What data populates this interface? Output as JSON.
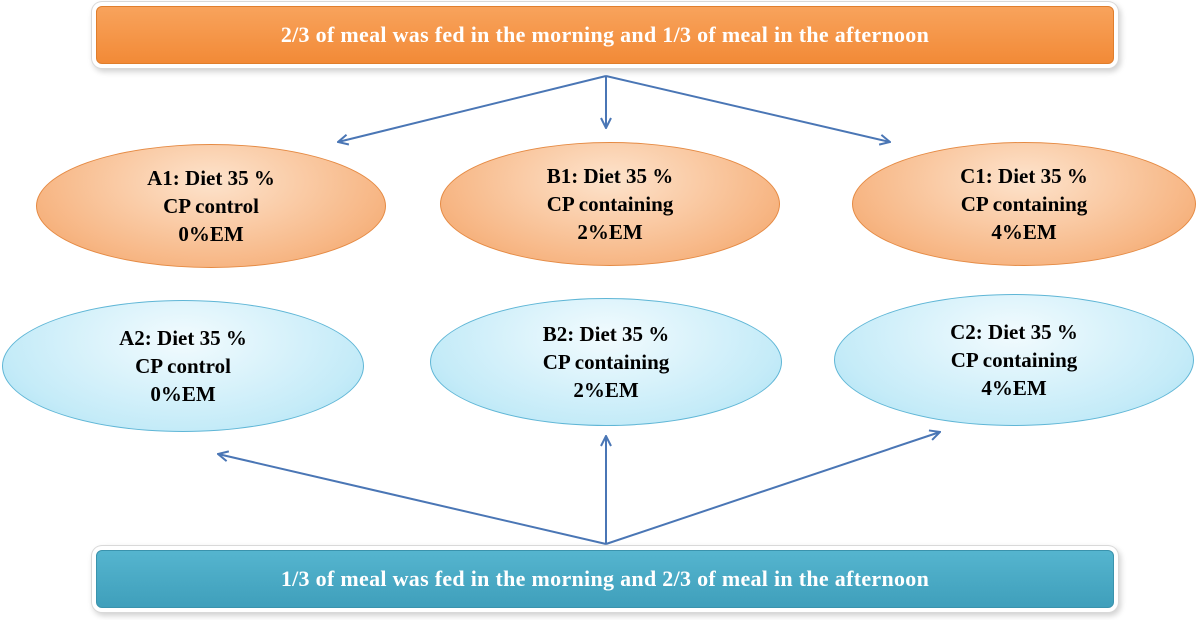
{
  "colors": {
    "orange_fill_light": "#fcd7b6",
    "orange_fill_dark": "#f3a56b",
    "orange_border": "#e58a43",
    "orange_banner": "#f79646",
    "blue_fill_light": "#e6f7fd",
    "blue_fill_dark": "#a9e1f3",
    "blue_border": "#5fb6d6",
    "blue_banner": "#4bacc6",
    "arrow": "#4a76b5"
  },
  "top_banner": {
    "text": "2/3 of meal was fed in the morning and 1/3 of meal in the afternoon"
  },
  "bottom_banner": {
    "text": "1/3 of meal was fed in the morning and 2/3 of meal in the afternoon"
  },
  "nodes": {
    "a1": {
      "line1": "A1: Diet 35 %",
      "line2": "CP control",
      "line3": "0%EM"
    },
    "b1": {
      "line1": "B1: Diet 35 %",
      "line2": "CP containing",
      "line3": "2%EM"
    },
    "c1": {
      "line1": "C1: Diet 35 %",
      "line2": "CP containing",
      "line3": "4%EM"
    },
    "a2": {
      "line1": "A2: Diet 35 %",
      "line2": "CP control",
      "line3": "0%EM"
    },
    "b2": {
      "line1": "B2: Diet 35 %",
      "line2": "CP containing",
      "line3": "2%EM"
    },
    "c2": {
      "line1": "C2: Diet 35 %",
      "line2": "CP containing",
      "line3": "4%EM"
    }
  }
}
